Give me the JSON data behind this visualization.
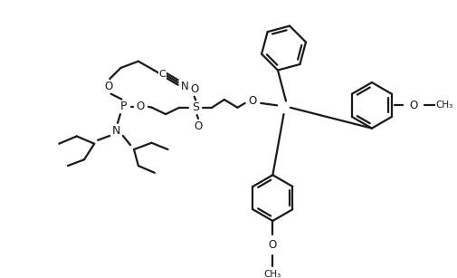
{
  "bg_color": "#ffffff",
  "line_color": "#1a1a1a",
  "line_width": 1.6,
  "figsize": [
    5.05,
    3.07
  ],
  "dpi": 100,
  "xlim": [
    0,
    10.1
  ],
  "ylim": [
    0,
    6.14
  ]
}
